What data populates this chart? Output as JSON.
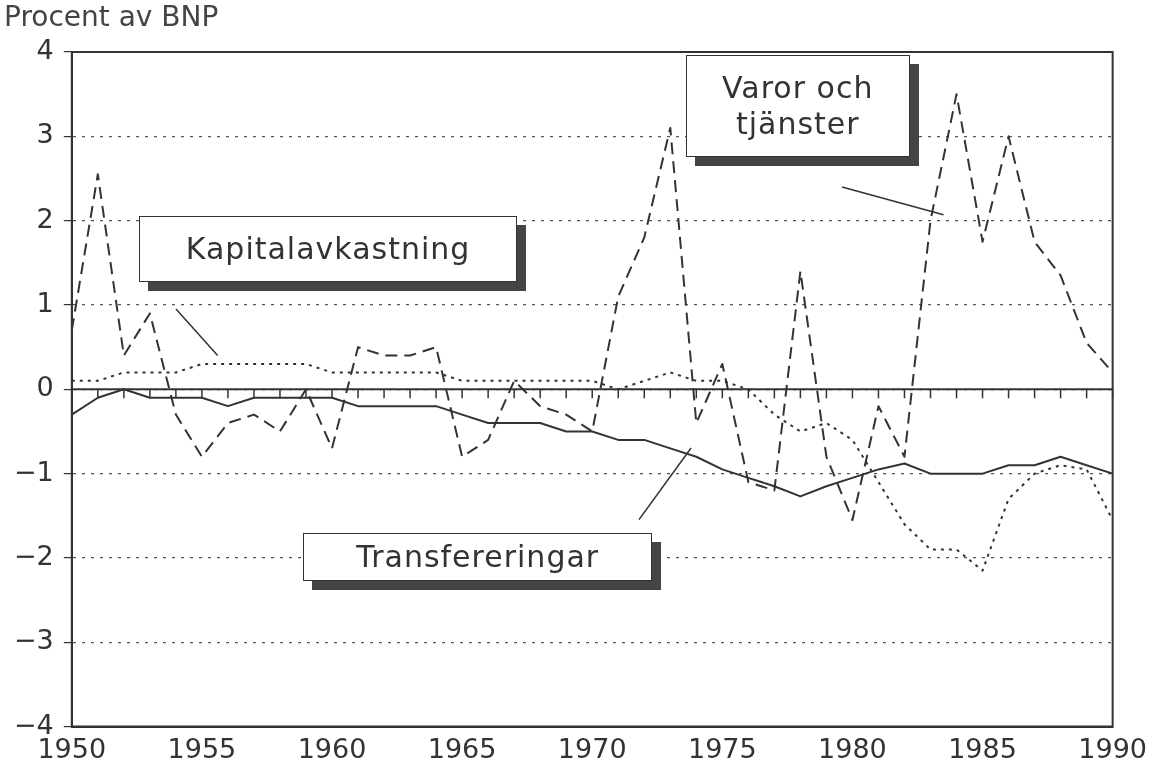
{
  "chart_data": {
    "type": "line",
    "ylabel": "Procent av BNP",
    "x": [
      1950,
      1951,
      1952,
      1953,
      1954,
      1955,
      1956,
      1957,
      1958,
      1959,
      1960,
      1961,
      1962,
      1963,
      1964,
      1965,
      1966,
      1967,
      1968,
      1969,
      1970,
      1971,
      1972,
      1973,
      1974,
      1975,
      1976,
      1977,
      1978,
      1979,
      1980,
      1981,
      1982,
      1983,
      1984,
      1985,
      1986,
      1987,
      1988,
      1989,
      1990
    ],
    "xlim": [
      1950,
      1990
    ],
    "xticks": [
      1950,
      1955,
      1960,
      1965,
      1970,
      1975,
      1980,
      1985,
      1990
    ],
    "ylim": [
      -4,
      4
    ],
    "yticks": [
      -4,
      -3,
      -2,
      -1,
      0,
      1,
      2,
      3,
      4
    ],
    "grid": "y",
    "legend": false,
    "marker": "none",
    "series": [
      {
        "name": "Varor och tjänster",
        "color": "#333333",
        "line_style": "dashed",
        "values": [
          0.7,
          2.55,
          0.4,
          0.9,
          -0.3,
          -0.8,
          -0.4,
          -0.3,
          -0.5,
          0.0,
          -0.7,
          0.5,
          0.4,
          0.4,
          0.5,
          -0.8,
          -0.6,
          0.1,
          -0.2,
          -0.3,
          -0.5,
          1.1,
          1.8,
          3.1,
          -0.4,
          0.3,
          -1.1,
          -1.2,
          1.4,
          -0.8,
          -1.55,
          -0.2,
          -0.8,
          2.0,
          3.5,
          1.75,
          3.0,
          1.75,
          1.35,
          0.55,
          0.2
        ]
      },
      {
        "name": "Kapitalavkastning",
        "color": "#333333",
        "line_style": "dotted",
        "values": [
          0.1,
          0.1,
          0.2,
          0.2,
          0.2,
          0.3,
          0.3,
          0.3,
          0.3,
          0.3,
          0.2,
          0.2,
          0.2,
          0.2,
          0.2,
          0.1,
          0.1,
          0.1,
          0.1,
          0.1,
          0.1,
          0.0,
          0.1,
          0.2,
          0.1,
          0.1,
          0.0,
          -0.3,
          -0.5,
          -0.4,
          -0.6,
          -1.1,
          -1.6,
          -1.9,
          -1.9,
          -2.15,
          -1.3,
          -1.0,
          -0.9,
          -0.95,
          -1.55
        ]
      },
      {
        "name": "Transfereringar",
        "color": "#333333",
        "line_style": "solid",
        "values": [
          -0.3,
          -0.1,
          0.0,
          -0.1,
          -0.1,
          -0.1,
          -0.2,
          -0.1,
          -0.1,
          -0.1,
          -0.1,
          -0.2,
          -0.2,
          -0.2,
          -0.2,
          -0.3,
          -0.4,
          -0.4,
          -0.4,
          -0.5,
          -0.5,
          -0.6,
          -0.6,
          -0.7,
          -0.8,
          -0.95,
          -1.05,
          -1.15,
          -1.27,
          -1.15,
          -1.05,
          -0.95,
          -0.88,
          -1.0,
          -1.0,
          -1.0,
          -0.9,
          -0.9,
          -0.8,
          -0.9,
          -1.0
        ]
      }
    ]
  }
}
